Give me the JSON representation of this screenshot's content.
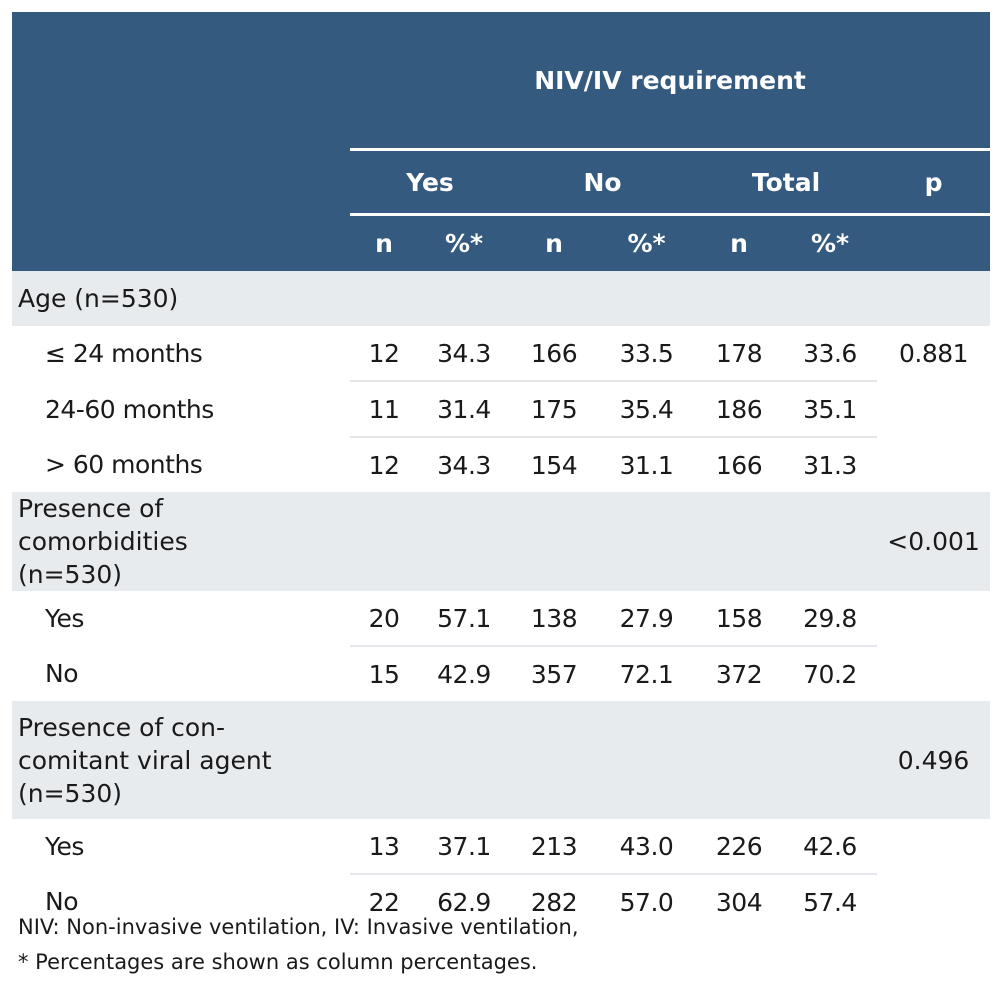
{
  "header": {
    "group": "NIV/IV requirement",
    "cols": [
      "Yes",
      "No",
      "Total"
    ],
    "p": "p",
    "sub": [
      "n",
      "%*",
      "n",
      "%*",
      "n",
      "%*"
    ]
  },
  "groups": [
    {
      "label": "Age (n=530)",
      "p": "",
      "rows": [
        {
          "label": "≤ 24 months",
          "v": [
            "12",
            "34.3",
            "166",
            "33.5",
            "178",
            "33.6"
          ],
          "p": "0.881"
        },
        {
          "label": "24-60 months",
          "v": [
            "11",
            "31.4",
            "175",
            "35.4",
            "186",
            "35.1"
          ],
          "p": ""
        },
        {
          "label": "> 60 months",
          "v": [
            "12",
            "34.3",
            "154",
            "31.1",
            "166",
            "31.3"
          ],
          "p": ""
        }
      ]
    },
    {
      "label": "Presence of comorbidities (n=530)",
      "p": "<0.001",
      "rows": [
        {
          "label": "Yes",
          "v": [
            "20",
            "57.1",
            "138",
            "27.9",
            "158",
            "29.8"
          ],
          "p": ""
        },
        {
          "label": "No",
          "v": [
            "15",
            "42.9",
            "357",
            "72.1",
            "372",
            "70.2"
          ],
          "p": ""
        }
      ]
    },
    {
      "label": "Presence of con-comitant viral agent (n=530)",
      "p": "0.496",
      "rows": [
        {
          "label": "Yes",
          "v": [
            "13",
            "37.1",
            "213",
            "43.0",
            "226",
            "42.6"
          ],
          "p": ""
        },
        {
          "label": "No",
          "v": [
            "22",
            "62.9",
            "282",
            "57.0",
            "304",
            "57.4"
          ],
          "p": ""
        }
      ]
    }
  ],
  "footnotes": [
    "NIV: Non-invasive ventilation, IV: Invasive ventilation,",
    "* Percentages are shown as column percentages."
  ]
}
